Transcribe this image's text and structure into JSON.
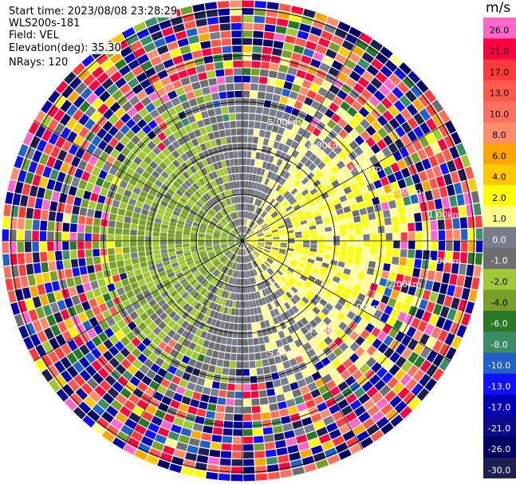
{
  "header": {
    "start_time": "Start time: 2023/08/08 23:28:29",
    "instrument": "WLS200s-181",
    "field": "Field: VEL",
    "elevation": "Elevation(deg): 35.30",
    "nrays": "NRays: 120"
  },
  "colorbar": {
    "unit": "m/s",
    "levels": [
      "26.0",
      "21.0",
      "17.0",
      "13.0",
      "10.0",
      "8.0",
      "6.0",
      "4.0",
      "2.0",
      "1.0",
      "0.0",
      "-1.0",
      "-2.0",
      "-4.0",
      "-6.0",
      "-8.0",
      "-10.0",
      "-13.0",
      "-17.0",
      "-21.0",
      "-26.0",
      "-30.0"
    ],
    "colors": [
      "#ff66cc",
      "#ff0040",
      "#ff3a3a",
      "#ff5a4a",
      "#ff7060",
      "#ff8c6a",
      "#ffa500",
      "#ffc800",
      "#ffff00",
      "#ffff90",
      "#787d8c",
      "#6e6e6e",
      "#a0c832",
      "#78a028",
      "#287828",
      "#3c8c64",
      "#2060c8",
      "#1010ff",
      "#0000b4",
      "#0a0a8c",
      "#000064",
      "#1e1e50"
    ]
  },
  "chart_data": {
    "type": "ppi-scan",
    "field": "VEL",
    "units": "m/s",
    "nrays": 120,
    "elevation_deg": 35.3,
    "range_rings_km": [
      1.0,
      2.0,
      3.0,
      4.0,
      5.0
    ],
    "ring_labels": [
      "1.00km",
      "2.00km",
      "3.00km",
      "4.00km",
      "5.00km"
    ],
    "max_range_km": 5.2,
    "gates_per_ray": 32,
    "dominant_values": {
      "east_near": 2.0,
      "west_near": -2.0,
      "far_field": "noise"
    }
  }
}
